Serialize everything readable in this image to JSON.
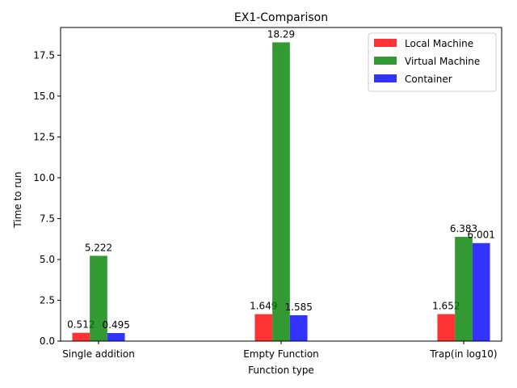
{
  "chart_data": {
    "type": "bar",
    "title": "EX1-Comparison",
    "xlabel": "Function type",
    "ylabel": "Time to run",
    "categories": [
      "Single addition",
      "Empty Function",
      "Trap(in log10)"
    ],
    "series": [
      {
        "name": "Local Machine",
        "color": "#ff0000",
        "values": [
          0.512,
          1.649,
          1.652
        ],
        "labels": [
          "0.512",
          "1.649",
          "1.652"
        ]
      },
      {
        "name": "Virtual Machine",
        "color": "#008000",
        "values": [
          5.222,
          18.29,
          6.383
        ],
        "labels": [
          "5.222",
          "18.29",
          "6.383"
        ]
      },
      {
        "name": "Container",
        "color": "#0000ff",
        "values": [
          0.495,
          1.585,
          6.001
        ],
        "labels": [
          "0.495",
          "1.585",
          "6.001"
        ]
      }
    ],
    "ylim": [
      0,
      19.2
    ],
    "yticks": [
      "0.0",
      "2.5",
      "5.0",
      "7.5",
      "10.0",
      "12.5",
      "15.0",
      "17.5"
    ],
    "grid": false,
    "legend_position": "top-right",
    "bar_opacity": 0.8
  }
}
